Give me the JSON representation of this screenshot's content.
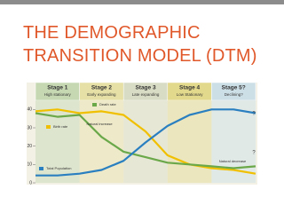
{
  "slide_title": "THE DEMOGRAPHIC TRANSITION MODEL (DTM)",
  "chart_data": {
    "type": "line",
    "stages": [
      {
        "name": "Stage 1",
        "label": "High stationary",
        "color": "#c6d8b2"
      },
      {
        "name": "Stage 2",
        "label": "Early expanding",
        "color": "#e6e0a6"
      },
      {
        "name": "Stage 3",
        "label": "Late expanding",
        "color": "#d9dcc4"
      },
      {
        "name": "Stage 4",
        "label": "Low Stationary",
        "color": "#e3d98c"
      },
      {
        "name": "Stage 5?",
        "label": "Declining?",
        "color": "#cddfe6"
      }
    ],
    "x": [
      0,
      0.5,
      1,
      1.5,
      2,
      2.5,
      3,
      3.5,
      4,
      4.5,
      5
    ],
    "xlim": [
      0,
      5
    ],
    "ylim": [
      0,
      45
    ],
    "yticks": [
      0,
      10,
      20,
      30,
      40
    ],
    "series": [
      {
        "name": "Birth rate",
        "color": "#f0c000",
        "values": [
          39,
          40,
          38,
          39,
          37,
          28,
          15,
          10,
          8,
          7,
          5
        ]
      },
      {
        "name": "Death rate",
        "color": "#6aa84a",
        "values": [
          38,
          36,
          37,
          25,
          17,
          14,
          11,
          10,
          9,
          8,
          9
        ]
      },
      {
        "name": "Total Population",
        "color": "#2a7fc0",
        "values": [
          4,
          4,
          5,
          7,
          12,
          22,
          31,
          37,
          40,
          40,
          38
        ]
      }
    ],
    "annotations": [
      "Natural increase",
      "Natural decrease",
      "?",
      "?"
    ]
  }
}
